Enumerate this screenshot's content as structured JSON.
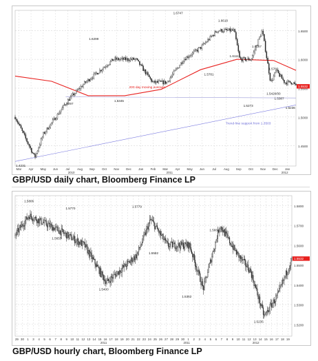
{
  "captions": {
    "daily": "GBP/USD daily chart, Bloomberg Finance LP",
    "hourly": "GBP/USD hourly chart, Bloomberg Finance LP"
  },
  "colors": {
    "candles": "#222222",
    "ma200": "#e8201e",
    "trend": "#7a7ae0",
    "support": "#9a9ad8",
    "grid": "#d8d8d8",
    "last_price": "#e8201e"
  },
  "chart_data": [
    {
      "type": "candlestick",
      "title": "",
      "xlabel": "",
      "ylabel": "",
      "x_ticks": [
        "Mar",
        "Apr",
        "May",
        "Jun",
        "Jul",
        "Aug",
        "Sep",
        "Oct",
        "Nov",
        "Dec",
        "Jan",
        "Feb",
        "Mar",
        "Apr",
        "May",
        "Jun",
        "Jul",
        "Aug",
        "Sep",
        "Oct",
        "Nov",
        "Dec",
        "Jan"
      ],
      "x_years": [
        "2010",
        "2011",
        "2012"
      ],
      "y_ticks": [
        1.65,
        1.6,
        1.55,
        1.5,
        1.45
      ],
      "ylim": [
        1.415,
        1.685
      ],
      "grid": true,
      "last_price": 1.5532,
      "annotations": [
        {
          "text": "1.6747",
          "x": "Apr 2011",
          "y": 1.6747
        },
        {
          "text": "1.6618",
          "x": "Aug 2011",
          "y": 1.6618
        },
        {
          "text": "1.6299",
          "x": "Oct 2010",
          "y": 1.6299
        },
        {
          "text": "1.6167",
          "x": "Oct 2011",
          "y": 1.6167
        },
        {
          "text": "1.5781",
          "x": "Jun 2011",
          "y": 1.5781
        },
        {
          "text": "1.6111",
          "x": "Jul 2011",
          "y": 1.6111
        },
        {
          "text": "1.5780",
          "x": "Nov 2011",
          "y": 1.578
        },
        {
          "text": "1.5297",
          "x": "Jul 2010",
          "y": 1.5297
        },
        {
          "text": "1.5345",
          "x": "Nov 2010",
          "y": 1.5345
        },
        {
          "text": "1.5420/00",
          "x": "Nov 2011",
          "y": 1.542
        },
        {
          "text": "1.5273",
          "x": "Sep 2011",
          "y": 1.5273
        },
        {
          "text": "1.5387",
          "x": "Dec 2011",
          "y": 1.5387
        },
        {
          "text": "1.5236",
          "x": "Jan 2012",
          "y": 1.5236
        },
        {
          "text": "1.4231",
          "x": "May 2010",
          "y": 1.4231
        },
        {
          "text": "200 day moving average",
          "x": "Jan 2011",
          "y": 1.556
        },
        {
          "text": "Trend-line support from 1.3503",
          "x": "Dec 2011",
          "y": 1.497
        }
      ],
      "series": [
        {
          "name": "GBP/USD",
          "kind": "ohlc",
          "x": [
            "Mar 2010",
            "May 2010",
            "Jun 2010",
            "Jul 2010",
            "Aug 2010",
            "Sep 2010",
            "Oct 2010",
            "Nov 2010",
            "Dec 2010",
            "Jan 2011",
            "Feb 2011",
            "Mar 2011",
            "Apr 2011",
            "May 2011",
            "Jun 2011",
            "Jul 2011",
            "Aug 2011",
            "Sep 2011",
            "Oct 2011",
            "Nov 2011",
            "Dec 2011",
            "Jan 2012"
          ],
          "close": [
            1.5,
            1.43,
            1.47,
            1.53,
            1.56,
            1.58,
            1.6,
            1.6,
            1.56,
            1.56,
            1.6,
            1.62,
            1.65,
            1.65,
            1.6,
            1.6,
            1.65,
            1.56,
            1.58,
            1.56,
            1.56,
            1.553
          ]
        },
        {
          "name": "200 day moving average",
          "kind": "line",
          "x": [
            "Mar 2010",
            "Jun 2010",
            "Sep 2010",
            "Dec 2010",
            "Mar 2011",
            "Jun 2011",
            "Sep 2011",
            "Dec 2011",
            "Jan 2012"
          ],
          "y": [
            1.571,
            1.562,
            1.537,
            1.537,
            1.548,
            1.582,
            1.6,
            1.598,
            1.581
          ]
        },
        {
          "name": "Trend-line support from 1.3503",
          "kind": "line",
          "x": [
            "Mar 2010",
            "Jan 2012"
          ],
          "y": [
            1.423,
            1.521
          ]
        }
      ]
    },
    {
      "type": "candlestick",
      "title": "",
      "xlabel": "",
      "ylabel": "",
      "x_ticks": [
        "29",
        "30",
        "1",
        "3",
        "4",
        "5",
        "6",
        "7",
        "8",
        "9",
        "10",
        "11",
        "12",
        "13",
        "14",
        "15",
        "16",
        "17",
        "18",
        "19",
        "20",
        "21",
        "22",
        "23",
        "24",
        "25",
        "26",
        "27",
        "28",
        "29",
        "30",
        "1",
        "2",
        "3",
        "4",
        "5",
        "6",
        "7",
        "8",
        "9",
        "10",
        "11",
        "12",
        "13",
        "14",
        "15",
        "16",
        "17",
        "18",
        "19"
      ],
      "x_years": [
        "2011",
        "2011",
        "2012"
      ],
      "y_ticks": [
        1.58,
        1.57,
        1.56,
        1.55,
        1.54,
        1.53,
        1.52
      ],
      "ylim": [
        1.514,
        1.585
      ],
      "grid": true,
      "last_price": 1.5532,
      "annotations": [
        {
          "text": "1.5806",
          "x": "Nov 30",
          "y": 1.5806
        },
        {
          "text": "1.5770",
          "x": "Dec 5",
          "y": 1.577
        },
        {
          "text": "1.5779",
          "x": "Dec 21",
          "y": 1.5779
        },
        {
          "text": "1.5660",
          "x": "Dec 30",
          "y": 1.566
        },
        {
          "text": "1.5653",
          "x": "Dec 2",
          "y": 1.5653
        },
        {
          "text": "1.5582",
          "x": "Dec 23",
          "y": 1.5582
        },
        {
          "text": "1.5400",
          "x": "Dec 14",
          "y": 1.54
        },
        {
          "text": "1.5362",
          "x": "Jan 2",
          "y": 1.5362
        },
        {
          "text": "1.5235",
          "x": "Jan 13",
          "y": 1.5235
        }
      ],
      "series": [
        {
          "name": "GBP/USD",
          "kind": "ohlc",
          "x": [
            "Nov 29",
            "Dec 1",
            "Dec 5",
            "Dec 9",
            "Dec 14",
            "Dec 19",
            "Dec 21",
            "Dec 23",
            "Dec 28",
            "Jan 2",
            "Jan 4",
            "Jan 6",
            "Jan 9",
            "Jan 13",
            "Jan 16",
            "Jan 19"
          ],
          "close": [
            1.565,
            1.575,
            1.568,
            1.56,
            1.541,
            1.555,
            1.573,
            1.56,
            1.56,
            1.538,
            1.57,
            1.556,
            1.547,
            1.524,
            1.535,
            1.553
          ]
        }
      ]
    }
  ]
}
